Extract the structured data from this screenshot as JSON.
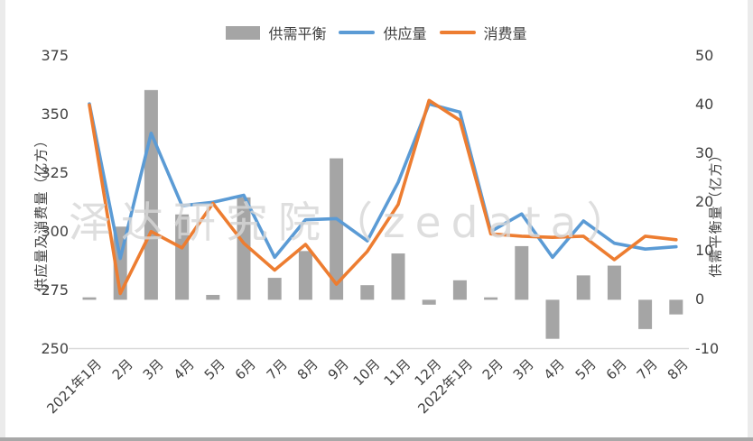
{
  "watermark": "泽达研究院（zedata）",
  "chart_data": {
    "type": "bar+line",
    "categories": [
      "2021年1月",
      "2月",
      "3月",
      "4月",
      "5月",
      "6月",
      "7月",
      "8月",
      "9月",
      "10月",
      "11月",
      "12月",
      "2022年1月",
      "2月",
      "3月",
      "4月",
      "5月",
      "6月",
      "7月",
      "8月"
    ],
    "series": [
      {
        "name": "供需平衡",
        "type": "bar",
        "axis": "right",
        "color": "#A5A5A5",
        "values": [
          0.5,
          15,
          43,
          17.5,
          1,
          21,
          4.5,
          10,
          29,
          3,
          9.5,
          -1,
          4,
          0.5,
          11,
          -8,
          5,
          7,
          -6,
          -3
        ]
      },
      {
        "name": "供应量",
        "type": "line",
        "axis": "left",
        "color": "#5B9BD5",
        "values": [
          354.5,
          288.5,
          342,
          311,
          312.5,
          315.5,
          289,
          305,
          305.5,
          296,
          321,
          354.5,
          351,
          300,
          307.5,
          289,
          304.5,
          295,
          292.5,
          293.5
        ]
      },
      {
        "name": "消费量",
        "type": "line",
        "axis": "left",
        "color": "#ED7D31",
        "values": [
          354,
          273.5,
          300,
          293,
          312,
          295,
          283.5,
          294.5,
          277.5,
          291.5,
          311.5,
          356,
          347.5,
          299,
          298,
          297.5,
          298,
          288,
          298,
          296.5
        ]
      }
    ],
    "left_axis": {
      "title": "供应量及消费量（亿方）",
      "min": 250,
      "max": 375,
      "ticks": [
        375,
        350,
        325,
        300,
        275,
        250
      ]
    },
    "right_axis": {
      "title": "供需平衡量（亿方）",
      "min": -10,
      "max": 50,
      "ticks": [
        50,
        40,
        30,
        20,
        10,
        0,
        -10
      ]
    },
    "legend_position": "top",
    "gridlines": false,
    "axis_line_color": "#d9d9d9",
    "text_color": "#404040"
  }
}
